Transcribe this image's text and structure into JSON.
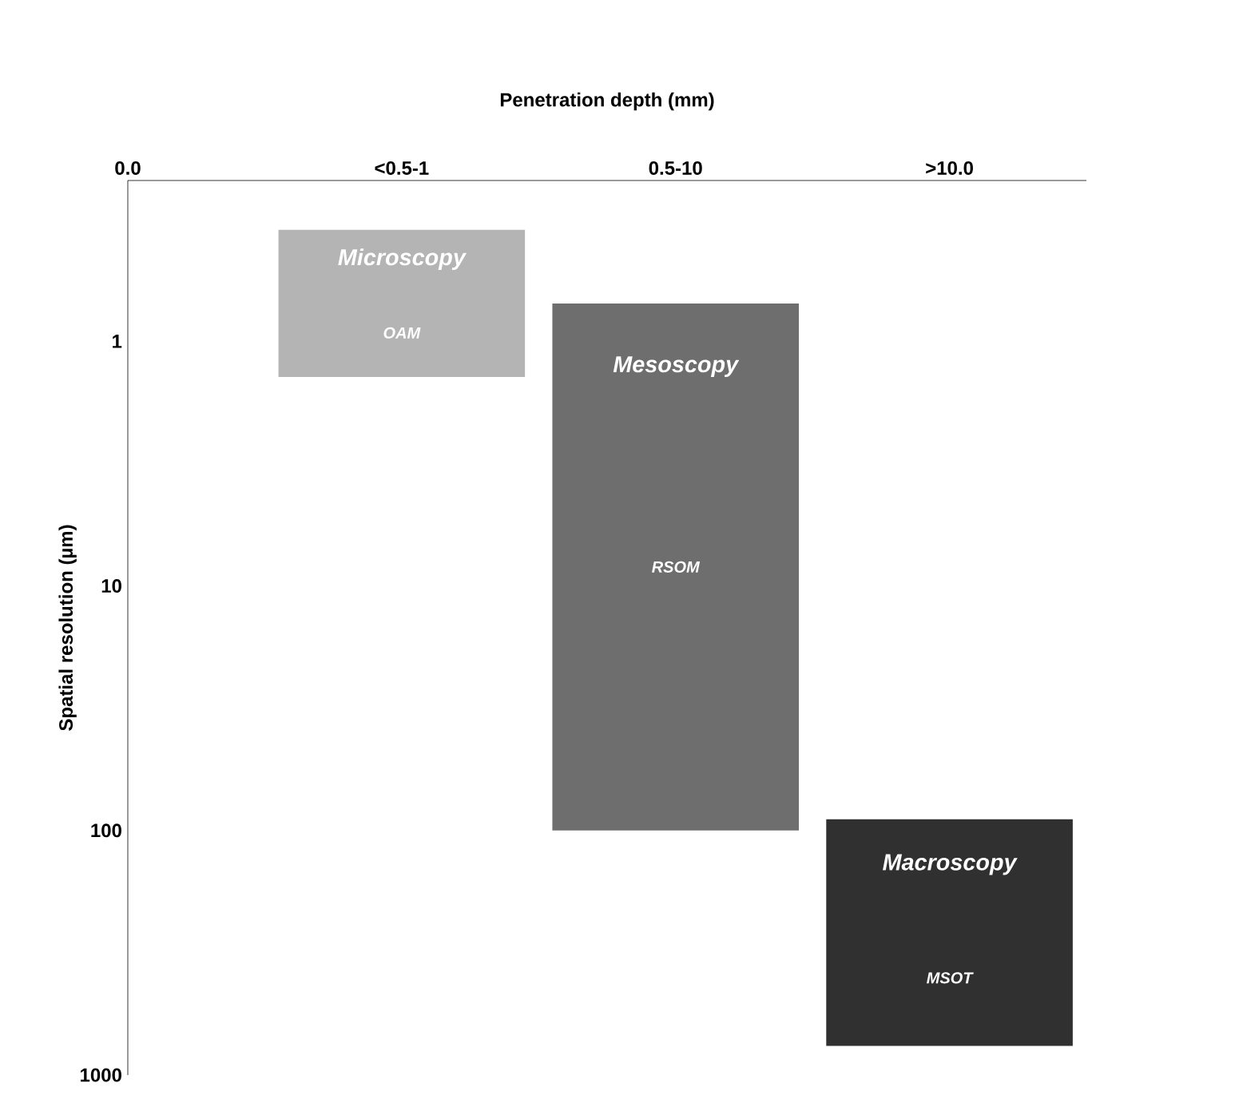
{
  "chart_data": {
    "type": "bar",
    "xlabel": "Penetration depth (mm)",
    "ylabel": "Spatial resolution (µm)",
    "categories": [
      "0.0",
      "<0.5-1",
      "0.5-10",
      ">10.0"
    ],
    "base": [
      null,
      0.35,
      0.7,
      90
    ],
    "values": [
      null,
      1.05,
      99.3,
      670
    ],
    "colors": [
      null,
      "#b4b4b4",
      "#6e6e6e",
      "#303030"
    ],
    "log": "y",
    "ylim": [
      1000,
      0.22
    ],
    "yticks": [
      1,
      10,
      100,
      1000
    ],
    "grid": false,
    "annotations": [
      "Microscopy",
      "OAM",
      "Mesoscopy",
      "RSOM",
      "Macroscopy",
      "MSOT"
    ]
  }
}
